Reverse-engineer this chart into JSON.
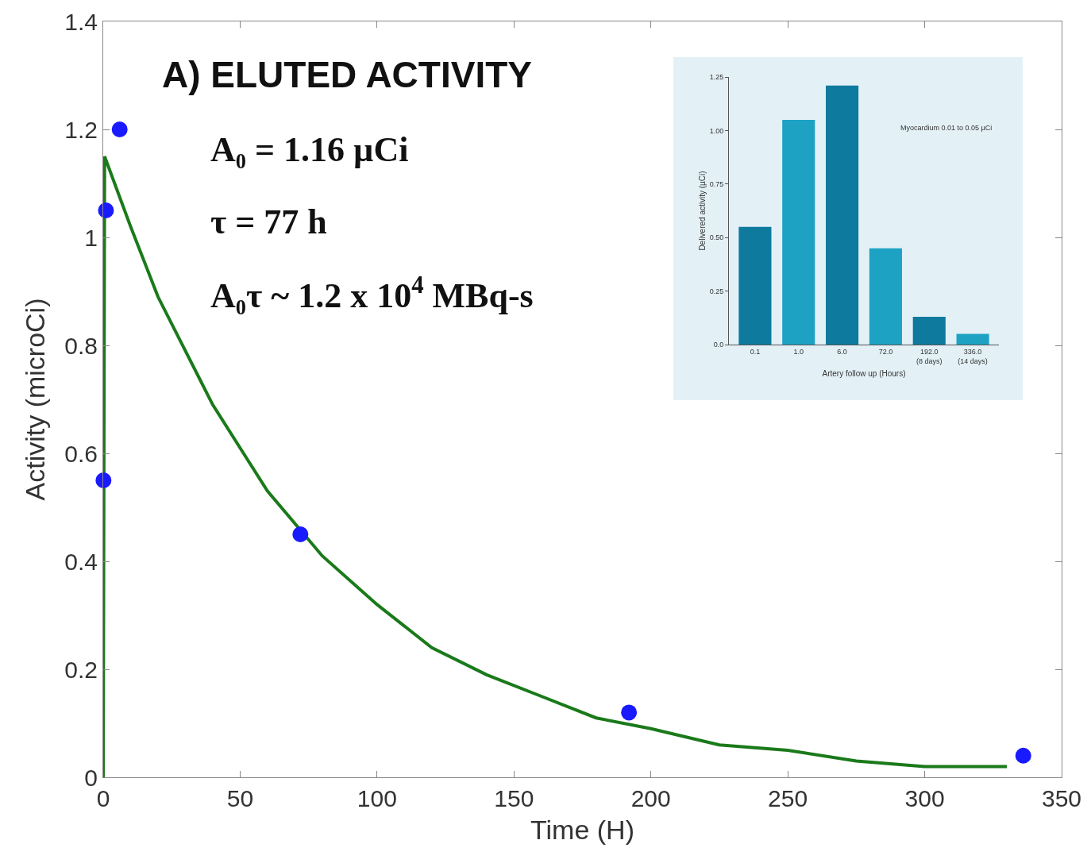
{
  "chart_data": [
    {
      "type": "scatter",
      "xlabel": "Time (H)",
      "ylabel": "Activity (microCi)",
      "xlim": [
        0,
        350
      ],
      "xticks": [
        0,
        50,
        100,
        150,
        200,
        250,
        300,
        350
      ],
      "ylim": [
        0,
        1.4
      ],
      "yticks": [
        0,
        0.2,
        0.4,
        0.6,
        0.8,
        1,
        1.2,
        1.4
      ],
      "grid": false,
      "annotations": [
        "A) ELUTED ACTIVITY",
        "A₀ = 1.16 µCi",
        "τ = 77 h",
        "A₀τ ~ 1.2 x 10$^{4}$ MBq-s"
      ],
      "series": [
        {
          "type": "line",
          "color": "#1a7a1a",
          "marker": "none",
          "line_style": "solid",
          "x": [
            0,
            0.5,
            10,
            20,
            30,
            40,
            50,
            60,
            80,
            100,
            120,
            140,
            160,
            180,
            200,
            225,
            250,
            275,
            300,
            330
          ],
          "values": [
            0,
            1.15,
            1.02,
            0.89,
            0.79,
            0.69,
            0.61,
            0.53,
            0.41,
            0.32,
            0.24,
            0.19,
            0.15,
            0.11,
            0.09,
            0.06,
            0.05,
            0.03,
            0.02,
            0.02
          ]
        },
        {
          "type": "scatter",
          "color": "#1a1aff",
          "marker": "circle",
          "x": [
            0.1,
            1,
            6,
            72,
            192,
            336
          ],
          "values": [
            0.55,
            1.05,
            1.2,
            0.45,
            0.12,
            0.04
          ]
        }
      ]
    },
    {
      "type": "bar",
      "xlabel": "Artery follow up (Hours)",
      "ylabel": "Delivered activity (µCi)",
      "categories": [
        "0.1",
        "1.0",
        "6.0",
        "72.0",
        "192.0\n(8 days)",
        "336.0\n(14 days)"
      ],
      "values": [
        0.55,
        1.05,
        1.21,
        0.45,
        0.13,
        0.05
      ],
      "colors": [
        "#0e7a9e",
        "#1ea2c4",
        "#0e7a9e",
        "#1ea2c4",
        "#0e7a9e",
        "#1ea2c4"
      ],
      "ylim": [
        0,
        1.25
      ],
      "yticks": [
        {
          "value": 0,
          "label": "0.0"
        },
        0.25,
        {
          "value": 0.5,
          "label": "0.50"
        },
        0.75,
        {
          "value": 1,
          "label": "1.00"
        },
        1.25
      ],
      "grid": false,
      "annotations": [
        "Myocardium 0.01 to 0.05 µCi"
      ]
    }
  ]
}
